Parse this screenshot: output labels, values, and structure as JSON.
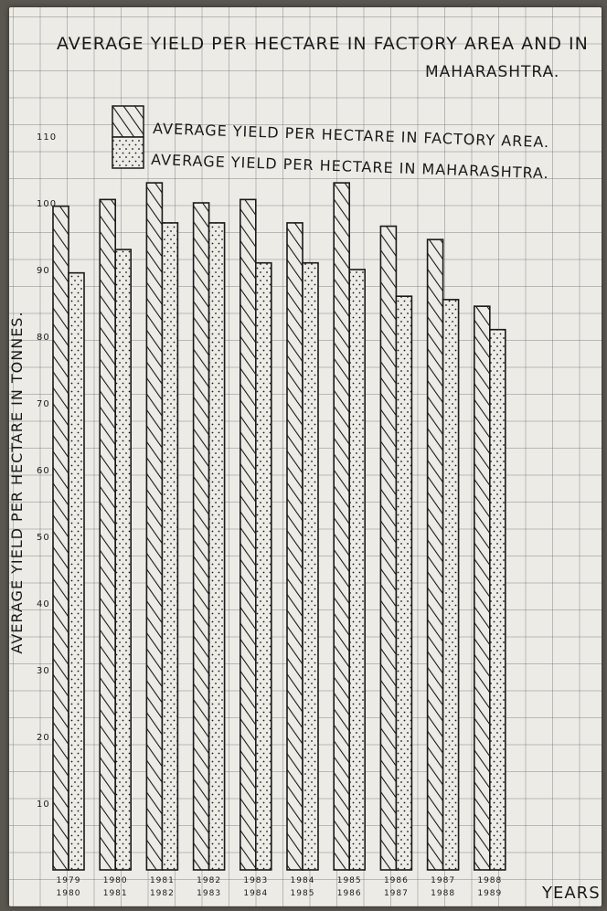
{
  "chart_data": {
    "type": "bar",
    "title_line1": "AVERAGE YIELD PER HECTARE IN FACTORY AREA AND IN",
    "title_line2": "MAHARASHTRA.",
    "ylabel": "AVERAGE YIELD PER HECTARE IN TONNES.",
    "xlabel": "YEARS",
    "ylim": [
      0,
      110
    ],
    "y_ticks": [
      "10",
      "20",
      "30",
      "40",
      "50",
      "60",
      "70",
      "80",
      "90",
      "100",
      "110"
    ],
    "categories": [
      [
        "1979",
        "1980"
      ],
      [
        "1980",
        "1981"
      ],
      [
        "1981",
        "1982"
      ],
      [
        "1982",
        "1983"
      ],
      [
        "1983",
        "1984"
      ],
      [
        "1984",
        "1985"
      ],
      [
        "1985",
        "1986"
      ],
      [
        "1986",
        "1987"
      ],
      [
        "1987",
        "1988"
      ],
      [
        "1988",
        "1989"
      ]
    ],
    "series": [
      {
        "name": "AVERAGE YIELD PER HECTARE IN FACTORY AREA.",
        "pattern": "hatch",
        "values": [
          99.5,
          100.5,
          103,
          100,
          100.5,
          97,
          103,
          96.5,
          94.5,
          84.5
        ]
      },
      {
        "name": "AVERAGE YIELD PER HECTARE IN MAHARASHTRA.",
        "pattern": "dots",
        "values": [
          89.5,
          93,
          97,
          97,
          91,
          91,
          90,
          86,
          85.5,
          81
        ]
      }
    ],
    "legend_position": "top",
    "grid": true,
    "colors": {
      "ink": "#1a1a1a",
      "paper": "#ecebe6",
      "grid": "#8a8a8a"
    }
  }
}
